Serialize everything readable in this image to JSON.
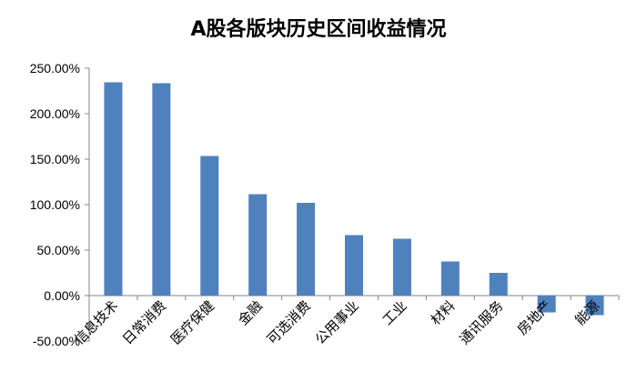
{
  "chart_data": {
    "type": "bar",
    "title": "A股各版块历史区间收益情况",
    "xlabel": "",
    "ylabel": "",
    "categories": [
      "信息技术",
      "日常消费",
      "医疗保健",
      "金融",
      "可选消费",
      "公用事业",
      "工业",
      "材料",
      "通讯服务",
      "房地产",
      "能源"
    ],
    "values": [
      234.5,
      233.5,
      153.5,
      111.5,
      102.0,
      66.5,
      62.5,
      37.5,
      25.0,
      -18.5,
      -21.5
    ],
    "value_unit": "%",
    "ylim": [
      -50,
      250
    ],
    "yticks": [
      "-50.00%",
      "0.00%",
      "50.00%",
      "100.00%",
      "150.00%",
      "200.00%",
      "250.00%"
    ],
    "ytick_values": [
      -50,
      0,
      50,
      100,
      150,
      200,
      250
    ],
    "grid": false,
    "legend": "none",
    "bar_color": "#4F81BD"
  }
}
